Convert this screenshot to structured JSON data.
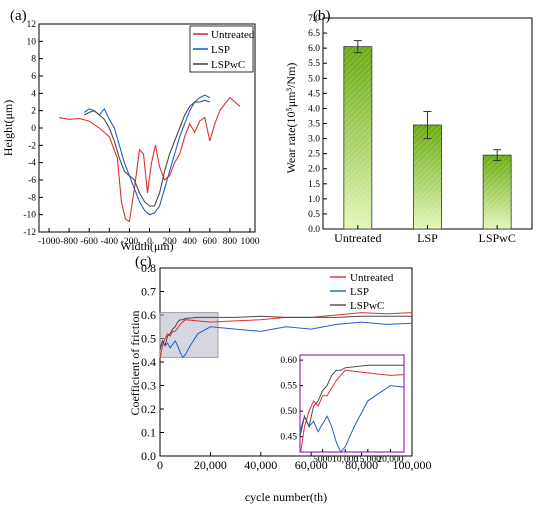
{
  "colors": {
    "untreated": "#e0302f",
    "lsp": "#1f5fd6",
    "lspwc": "#4a4a4a",
    "bar_top": "#6aaa10",
    "bar_bottom": "#e4f6b8",
    "box_fill": "#b4b4c6",
    "inset_border": "#9b2cc4"
  },
  "chart_data": [
    {
      "panel": "(a)",
      "type": "line",
      "xlabel": "Width(μm)",
      "ylabel": "Height(μm)",
      "xlim": [
        -1100,
        1050
      ],
      "ylim": [
        -12,
        12
      ],
      "xticks": [
        "-1000",
        "-800",
        "-600",
        "-400",
        "-200",
        "0",
        "200",
        "400",
        "600",
        "800",
        "1000"
      ],
      "yticks": [
        "-12",
        "-10",
        "-8",
        "-6",
        "-4",
        "-2",
        "0",
        "2",
        "4",
        "6",
        "8",
        "10",
        "12"
      ],
      "legend": "top-right",
      "series": [
        {
          "name": "Untreated",
          "x": [
            -900,
            -800,
            -700,
            -600,
            -500,
            -400,
            -320,
            -280,
            -240,
            -200,
            -150,
            -100,
            -60,
            -20,
            20,
            60,
            100,
            150,
            200,
            250,
            300,
            350,
            400,
            450,
            500,
            550,
            600,
            650,
            700,
            750,
            800,
            850,
            900
          ],
          "y": [
            1.2,
            1.0,
            1.1,
            0.8,
            0.0,
            -1.0,
            -3.5,
            -8.5,
            -10.5,
            -10.8,
            -7.0,
            -2.5,
            -3.0,
            -7.5,
            -4.0,
            -2.0,
            -4.5,
            -6.0,
            -5.5,
            -4.0,
            -3.0,
            -1.0,
            0.5,
            -0.5,
            0.8,
            1.2,
            -1.5,
            0.5,
            2.0,
            2.8,
            3.5,
            3.0,
            2.5
          ]
        },
        {
          "name": "LSP",
          "x": [
            -650,
            -600,
            -550,
            -500,
            -450,
            -400,
            -350,
            -300,
            -250,
            -200,
            -150,
            -100,
            -50,
            0,
            50,
            100,
            150,
            200,
            250,
            300,
            350,
            400,
            450,
            500,
            550,
            600
          ],
          "y": [
            1.8,
            2.2,
            2.0,
            1.5,
            2.2,
            1.0,
            0.0,
            -2.0,
            -4.0,
            -5.5,
            -7.0,
            -8.5,
            -9.5,
            -10.0,
            -9.8,
            -9.0,
            -7.0,
            -5.0,
            -3.0,
            -1.0,
            0.5,
            2.0,
            3.0,
            3.5,
            3.8,
            3.5
          ]
        },
        {
          "name": "LSPwC",
          "x": [
            -650,
            -600,
            -550,
            -500,
            -450,
            -400,
            -350,
            -300,
            -250,
            -200,
            -150,
            -100,
            -50,
            0,
            50,
            100,
            150,
            200,
            250,
            300,
            350,
            400,
            450,
            500,
            550,
            600
          ],
          "y": [
            1.5,
            1.8,
            2.0,
            1.5,
            1.0,
            0.0,
            -1.5,
            -3.5,
            -5.0,
            -5.5,
            -6.0,
            -7.5,
            -8.5,
            -9.0,
            -9.0,
            -7.5,
            -5.0,
            -3.0,
            -1.5,
            0.0,
            1.5,
            2.5,
            3.0,
            3.0,
            3.2,
            3.0
          ]
        }
      ]
    },
    {
      "panel": "(b)",
      "type": "bar",
      "categories": [
        "Untreated",
        "LSP",
        "LSPwC"
      ],
      "values": [
        6.05,
        3.45,
        2.45
      ],
      "errors": [
        0.2,
        0.45,
        0.18
      ],
      "ylabel": "Wear  rate(10⁵μm³/Nm)",
      "ylim": [
        0,
        7
      ],
      "yticks": [
        "0.0",
        "0.5",
        "1.0",
        "1.5",
        "2.0",
        "2.5",
        "3.0",
        "3.5",
        "4.0",
        "4.5",
        "5.0",
        "5.5",
        "6.0",
        "6.5",
        "7.0"
      ]
    },
    {
      "panel": "(c)",
      "type": "line",
      "xlabel": "cycle number(th)",
      "ylabel": "Coefficient of friction",
      "xlim": [
        0,
        100000
      ],
      "ylim": [
        0,
        0.8
      ],
      "xticks": [
        "0",
        "20,000",
        "40,000",
        "60,000",
        "80,000",
        "100,000"
      ],
      "yticks": [
        "0.0",
        "0.1",
        "0.2",
        "0.3",
        "0.4",
        "0.5",
        "0.6",
        "0.7",
        "0.8"
      ],
      "legend": "top-right",
      "series": [
        {
          "name": "Untreated",
          "x": [
            0,
            1000,
            2000,
            3000,
            4000,
            5000,
            6000,
            8000,
            10000,
            15000,
            20000,
            30000,
            40000,
            50000,
            60000,
            70000,
            80000,
            90000,
            100000
          ],
          "y": [
            0.41,
            0.47,
            0.5,
            0.52,
            0.51,
            0.53,
            0.53,
            0.56,
            0.58,
            0.575,
            0.57,
            0.575,
            0.58,
            0.59,
            0.59,
            0.6,
            0.61,
            0.605,
            0.61
          ]
        },
        {
          "name": "LSP",
          "x": [
            0,
            1000,
            2000,
            3000,
            4000,
            5000,
            6000,
            7000,
            8000,
            9000,
            10000,
            12000,
            15000,
            20000,
            30000,
            40000,
            50000,
            60000,
            70000,
            80000,
            90000,
            100000
          ],
          "y": [
            0.46,
            0.49,
            0.47,
            0.48,
            0.46,
            0.475,
            0.49,
            0.47,
            0.44,
            0.42,
            0.43,
            0.47,
            0.52,
            0.55,
            0.54,
            0.53,
            0.55,
            0.54,
            0.56,
            0.57,
            0.56,
            0.565
          ]
        },
        {
          "name": "LSPwC",
          "x": [
            0,
            1000,
            2000,
            3000,
            4000,
            5000,
            6000,
            7000,
            8000,
            9000,
            10000,
            15000,
            20000,
            30000,
            40000,
            50000,
            60000,
            70000,
            80000,
            90000,
            100000
          ],
          "y": [
            0.45,
            0.49,
            0.47,
            0.51,
            0.52,
            0.54,
            0.55,
            0.57,
            0.58,
            0.58,
            0.585,
            0.59,
            0.59,
            0.59,
            0.595,
            0.59,
            0.59,
            0.59,
            0.595,
            0.595,
            0.595
          ]
        }
      ],
      "inset": {
        "xlim": [
          0,
          23000
        ],
        "ylim": [
          0.42,
          0.61
        ],
        "xticks": [
          "5000",
          "10,000",
          "15,000",
          "20,000"
        ],
        "yticks": [
          "0.45",
          "0.50",
          "0.55",
          "0.60"
        ]
      }
    }
  ]
}
